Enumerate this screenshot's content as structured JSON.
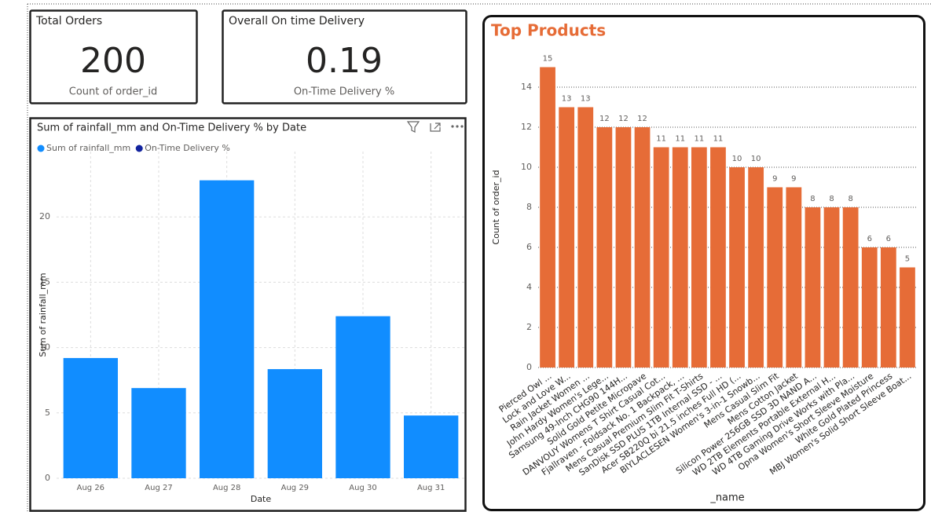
{
  "cards": [
    {
      "title": "Total Orders",
      "value": 200,
      "label": "Count of order_id"
    },
    {
      "title": "Overall On time Delivery",
      "value": 0.19,
      "label": "On-Time Delivery %"
    }
  ],
  "chart_data": [
    {
      "type": "bar",
      "title": "Sum of rainfall_mm and On-Time Delivery % by Date",
      "categories": [
        "Aug 26",
        "Aug 27",
        "Aug 28",
        "Aug 29",
        "Aug 30",
        "Aug 31"
      ],
      "series": [
        {
          "name": "Sum of rainfall_mm",
          "color": "#118dff",
          "values": [
            9.2,
            6.9,
            22.8,
            8.35,
            12.4,
            4.8
          ]
        },
        {
          "name": "On-Time Delivery %",
          "color": "#12239e",
          "values": [
            null,
            null,
            null,
            null,
            null,
            null
          ]
        }
      ],
      "ylim": [
        0,
        25
      ],
      "yticks": [
        0,
        5,
        10,
        15,
        20
      ],
      "grid": true,
      "xlabel": "Date",
      "ylabel": "Sum of rainfall_mm",
      "legend": "top"
    },
    {
      "type": "bar",
      "title": "Top Products",
      "categories": [
        "Pierced Owl ...",
        "Lock and Love W...",
        "Rain Jacket Women ...",
        "John Hardy Women's Lege...",
        "Samsung 49-Inch CHG90 144H...",
        "Solid Gold Petite Micropave",
        "DANVOUY Womens T Shirt Casual Cot...",
        "Fjallraven - Foldsack No. 1 Backpack, ...",
        "Mens Casual Premium Slim Fit T-Shirts",
        "SanDisk SSD PLUS 1TB Internal SSD - ...",
        "Acer SB220Q bi 21.5 inches Full HD (...",
        "BIYLACLESEN Women's 3-in-1 Snowb...",
        "Mens Casual Slim Fit",
        "Mens Cotton Jacket",
        "Silicon Power 256GB SSD 3D NAND A...",
        "WD 2TB Elements Portable External H...",
        "WD 4TB Gaming Drive Works with Pla...",
        "Opna Women's Short Sleeve Moisture",
        "White Gold Plated Princess",
        "MBJ Women's Solid Short Sleeve Boat..."
      ],
      "series": [
        {
          "name": "Count of order_id",
          "color": "#e66c37",
          "values": [
            15,
            13,
            13,
            12,
            12,
            12,
            11,
            11,
            11,
            11,
            10,
            10,
            9,
            9,
            8,
            8,
            8,
            6,
            6,
            5
          ]
        }
      ],
      "ylim": [
        0,
        16
      ],
      "yticks": [
        0,
        2,
        4,
        6,
        8,
        10,
        12,
        14
      ],
      "grid": true,
      "xlabel": "_name",
      "ylabel": "Count of order_id",
      "data_labels": true
    }
  ]
}
